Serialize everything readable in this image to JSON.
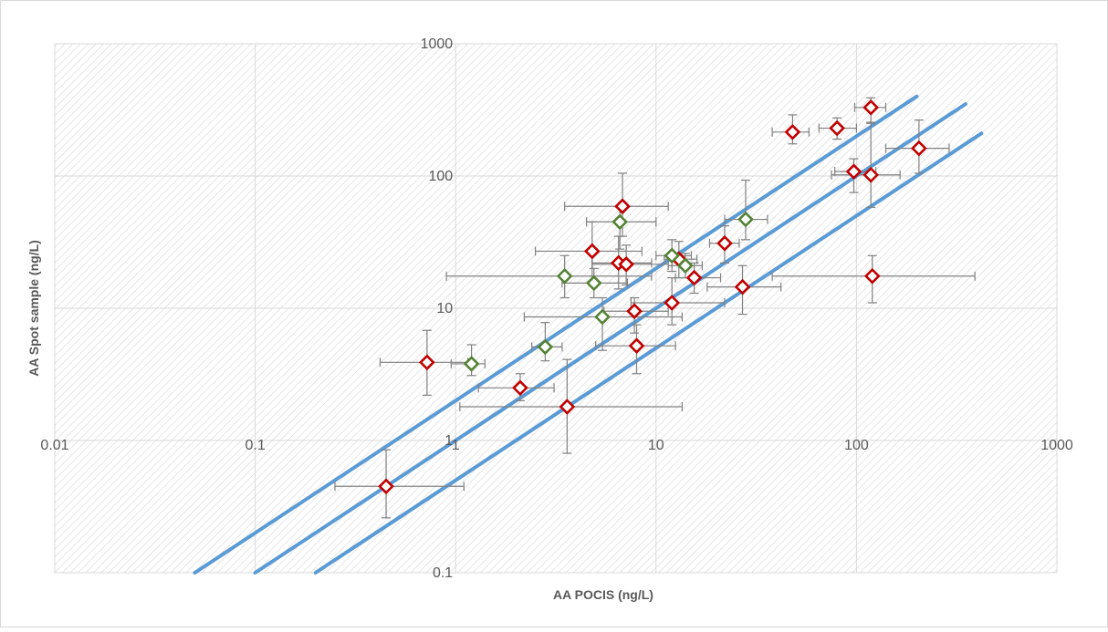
{
  "chart_data": {
    "type": "scatter",
    "title": "",
    "xlabel": "AA POCIS (ng/L)",
    "ylabel": "AA Spot sample  (ng/L)",
    "x_scale": "log",
    "y_scale": "log",
    "xlim": [
      0.01,
      1000
    ],
    "ylim": [
      0.1,
      1000
    ],
    "x_ticks": [
      "0.01",
      "0.1",
      "1",
      "10",
      "100",
      "1000"
    ],
    "y_ticks": [
      "0.1",
      "1",
      "10",
      "100",
      "1000"
    ],
    "grid": true,
    "legend": "none",
    "colors": {
      "red_marker": "#c00000",
      "green_marker": "#548235",
      "error_bar": "#808080",
      "line": "#5b9bd5",
      "grid": "#d9d9d9",
      "hatch": "#d8d8d8"
    },
    "reference_lines": [
      {
        "x": [
          0.05,
          200
        ],
        "y": [
          0.1,
          400
        ]
      },
      {
        "x": [
          0.1,
          350
        ],
        "y": [
          0.1,
          350
        ]
      },
      {
        "x": [
          0.2,
          420
        ],
        "y": [
          0.1,
          210
        ]
      }
    ],
    "series": [
      {
        "color": "red",
        "points": [
          {
            "x": 0.45,
            "y": 0.45,
            "xerr": [
              0.25,
              1.1
            ],
            "yerr": [
              0.26,
              0.85
            ]
          },
          {
            "x": 0.72,
            "y": 3.9,
            "xerr": [
              0.42,
              1.15
            ],
            "yerr": [
              2.2,
              6.8
            ]
          },
          {
            "x": 2.1,
            "y": 2.5,
            "xerr": [
              1.3,
              3.1
            ],
            "yerr": [
              2.0,
              3.2
            ]
          },
          {
            "x": 3.6,
            "y": 1.8,
            "xerr": [
              1.05,
              13.5
            ],
            "yerr": [
              0.8,
              4.1
            ]
          },
          {
            "x": 4.8,
            "y": 27,
            "xerr": [
              2.5,
              8.5
            ],
            "yerr": [
              16,
              45
            ]
          },
          {
            "x": 6.5,
            "y": 22,
            "xerr": [
              4.8,
              9.5
            ],
            "yerr": [
              14,
              35
            ]
          },
          {
            "x": 6.8,
            "y": 59,
            "xerr": [
              3.5,
              11.5
            ],
            "yerr": [
              35,
              105
            ]
          },
          {
            "x": 7.1,
            "y": 21.5,
            "xerr": [
              4.8,
              11.5
            ],
            "yerr": [
              15,
              30
            ]
          },
          {
            "x": 7.8,
            "y": 9.5,
            "xerr": [
              5.5,
              11.5
            ],
            "yerr": [
              6.5,
              12
            ]
          },
          {
            "x": 8.0,
            "y": 5.2,
            "xerr": [
              5.0,
              12.5
            ],
            "yerr": [
              3.2,
              7.5
            ]
          },
          {
            "x": 12,
            "y": 11,
            "xerr": [
              7.5,
              22
            ],
            "yerr": [
              7.5,
              17
            ]
          },
          {
            "x": 13,
            "y": 23.5,
            "xerr": [
              11,
              16
            ],
            "yerr": [
              17,
              32
            ]
          },
          {
            "x": 15.5,
            "y": 17,
            "xerr": [
              12.5,
              21
            ],
            "yerr": [
              13,
              22
            ]
          },
          {
            "x": 22,
            "y": 31,
            "xerr": [
              18.5,
              26
            ],
            "yerr": [
              22,
              42
            ]
          },
          {
            "x": 27,
            "y": 14.5,
            "xerr": [
              18,
              42
            ],
            "yerr": [
              9,
              21
            ]
          },
          {
            "x": 48,
            "y": 215,
            "xerr": [
              38,
              58
            ],
            "yerr": [
              175,
              290
            ]
          },
          {
            "x": 80,
            "y": 230,
            "xerr": [
              65,
              100
            ],
            "yerr": [
              190,
              275
            ]
          },
          {
            "x": 97,
            "y": 108,
            "xerr": [
              78,
              125
            ],
            "yerr": [
              75,
              135
            ]
          },
          {
            "x": 118,
            "y": 330,
            "xerr": [
              98,
              140
            ],
            "yerr": [
              250,
              390
            ]
          },
          {
            "x": 118,
            "y": 102,
            "xerr": [
              75,
              165
            ],
            "yerr": [
              58,
              255
            ]
          },
          {
            "x": 120,
            "y": 17.5,
            "xerr": [
              38,
              390
            ],
            "yerr": [
              11,
              25
            ]
          },
          {
            "x": 205,
            "y": 162,
            "xerr": [
              140,
              290
            ],
            "yerr": [
              105,
              265
            ]
          }
        ]
      },
      {
        "color": "green",
        "points": [
          {
            "x": 1.2,
            "y": 3.8,
            "xerr": [
              0.95,
              1.4
            ],
            "yerr": [
              3.1,
              5.3
            ]
          },
          {
            "x": 2.8,
            "y": 5.1,
            "xerr": [
              2.4,
              3.4
            ],
            "yerr": [
              4.0,
              7.8
            ]
          },
          {
            "x": 3.5,
            "y": 17.5,
            "xerr": [
              0.9,
              9.5
            ],
            "yerr": [
              12,
              25
            ]
          },
          {
            "x": 4.9,
            "y": 15.5,
            "xerr": [
              3.4,
              7.2
            ],
            "yerr": [
              12,
              20
            ]
          },
          {
            "x": 5.4,
            "y": 8.6,
            "xerr": [
              2.2,
              13.5
            ],
            "yerr": [
              4.8,
              12
            ]
          },
          {
            "x": 6.6,
            "y": 45,
            "xerr": [
              4.5,
              10
            ],
            "yerr": [
              28,
              58
            ]
          },
          {
            "x": 12,
            "y": 25,
            "xerr": [
              10,
              15
            ],
            "yerr": [
              19,
              33
            ]
          },
          {
            "x": 14,
            "y": 21,
            "xerr": [
              11.5,
              17
            ],
            "yerr": [
              17,
              26
            ]
          },
          {
            "x": 28,
            "y": 47,
            "xerr": [
              22,
              36
            ],
            "yerr": [
              33,
              93
            ]
          }
        ]
      }
    ]
  }
}
